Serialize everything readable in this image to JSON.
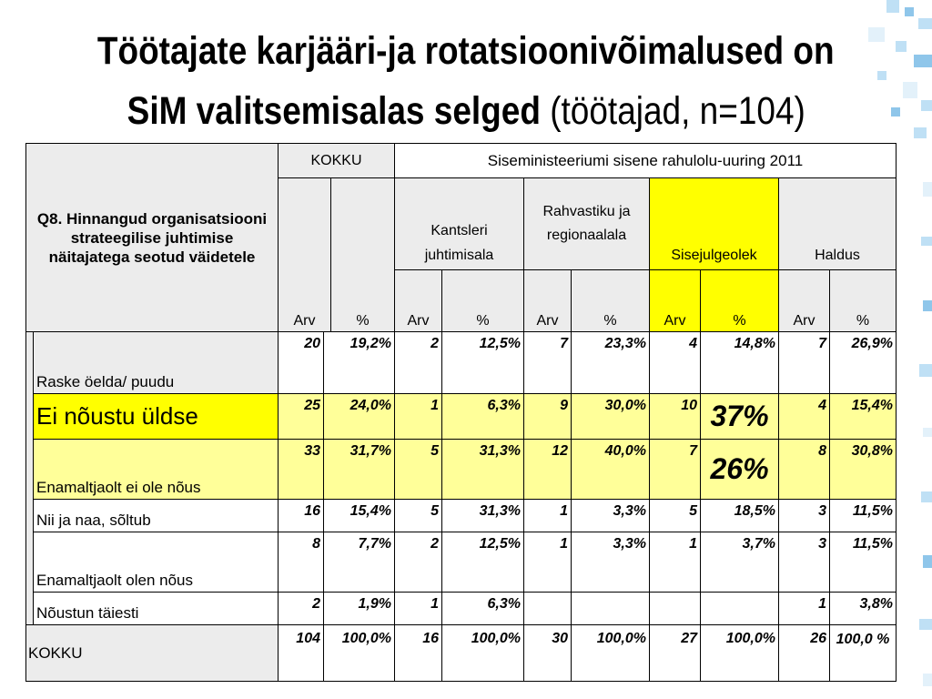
{
  "title": {
    "line1": "Töötajate karjääri-ja rotatsioonivõimalused on",
    "line2_bold": "SiM valitsemisalas selged",
    "line2_normal": " (töötajad, n=104)"
  },
  "table": {
    "question": "Q8. Hinnangud organisatsiooni strateegilise juhtimise näitajatega seotud väidetele",
    "kokku_header": "KOKKU",
    "survey_header": "Siseministeeriumi sisene rahulolu-uuring 2011",
    "groups": [
      "Kantsleri juhtimisala",
      "Rahvastiku ja regionaalala",
      "Sisejulgeolek",
      "Haldus"
    ],
    "sub_headers": [
      "Arv",
      "%",
      "Arv",
      "%",
      "Arv",
      "%",
      "Arv",
      "%",
      "Arv",
      "%"
    ],
    "rows": [
      {
        "label": "Raske öelda/ puudu",
        "values": [
          "20",
          "19,2%",
          "2",
          "12,5%",
          "7",
          "23,3%",
          "4",
          "14,8%",
          "7",
          "26,9%"
        ]
      },
      {
        "label": "Ei nõustu üldse",
        "values": [
          "25",
          "24,0%",
          "1",
          "6,3%",
          "9",
          "30,0%",
          "10",
          "37%",
          "4",
          "15,4%"
        ]
      },
      {
        "label": "Enamaltjaolt ei ole nõus",
        "values": [
          "33",
          "31,7%",
          "5",
          "31,3%",
          "12",
          "40,0%",
          "7",
          "26%",
          "8",
          "30,8%"
        ]
      },
      {
        "label": "Nii ja naa, sõltub",
        "values": [
          "16",
          "15,4%",
          "5",
          "31,3%",
          "1",
          "3,3%",
          "5",
          "18,5%",
          "3",
          "11,5%"
        ]
      },
      {
        "label": "Enamaltjaolt olen nõus",
        "values": [
          "8",
          "7,7%",
          "2",
          "12,5%",
          "1",
          "3,3%",
          "1",
          "3,7%",
          "3",
          "11,5%"
        ]
      },
      {
        "label": "Nõustun täiesti",
        "values": [
          "2",
          "1,9%",
          "1",
          "6,3%",
          "",
          "",
          "",
          "",
          "1",
          "3,8%"
        ]
      }
    ],
    "total": {
      "label": "KOKKU",
      "values": [
        "104",
        "100,0%",
        "16",
        "100,0%",
        "30",
        "100,0%",
        "27",
        "100,0%",
        "26",
        "100,0 %"
      ]
    }
  },
  "colors": {
    "highlight": "#ffff00",
    "light_highlight": "#ffff99",
    "header_grey": "#ececec",
    "mosaic_blue": "#bfe0f5"
  }
}
